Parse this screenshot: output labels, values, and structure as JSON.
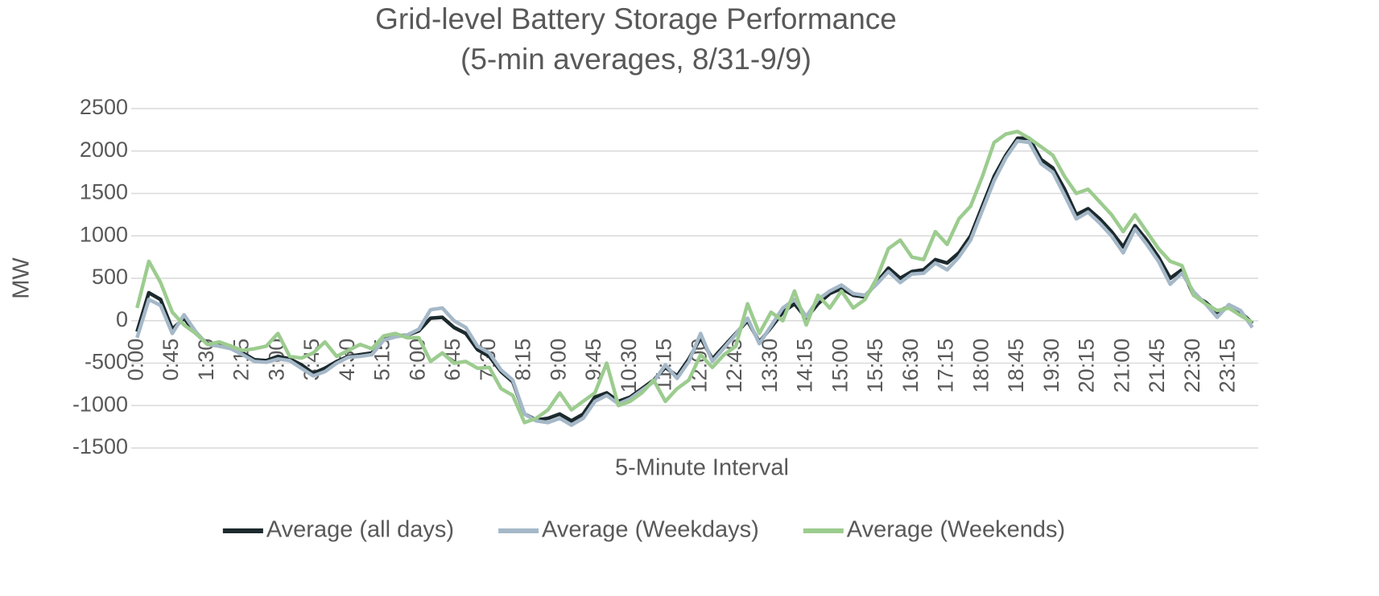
{
  "chart_data": {
    "type": "line",
    "title": "Grid-level Battery Storage Performance",
    "subtitle": "(5-min averages, 8/31-9/9)",
    "x_label": "5-Minute Interval",
    "y_label": "MW",
    "categories": [
      "0:00",
      null,
      null,
      "0:45",
      null,
      null,
      "1:30",
      null,
      null,
      "2:15",
      null,
      null,
      "3:00",
      null,
      null,
      "3:45",
      null,
      null,
      "4:30",
      null,
      null,
      "5:15",
      null,
      null,
      "6:00",
      null,
      null,
      "6:45",
      null,
      null,
      "7:30",
      null,
      null,
      "8:15",
      null,
      null,
      "9:00",
      null,
      null,
      "9:45",
      null,
      null,
      "10:30",
      null,
      null,
      "11:15",
      null,
      null,
      "12:00",
      null,
      null,
      "12:45",
      null,
      null,
      "13:30",
      null,
      null,
      "14:15",
      null,
      null,
      "15:00",
      null,
      null,
      "15:45",
      null,
      null,
      "16:30",
      null,
      null,
      "17:15",
      null,
      null,
      "18:00",
      null,
      null,
      "18:45",
      null,
      null,
      "19:30",
      null,
      null,
      "20:15",
      null,
      null,
      "21:00",
      null,
      null,
      "21:45",
      null,
      null,
      "22:30",
      null,
      null,
      "23:15",
      null,
      null
    ],
    "series": [
      {
        "name": "Average (all days)",
        "color": "#1c2a2e",
        "values": [
          -130,
          330,
          250,
          -100,
          30,
          -150,
          -270,
          -290,
          -300,
          -380,
          -460,
          -470,
          -420,
          -450,
          -520,
          -620,
          -560,
          -480,
          -420,
          -400,
          -380,
          -220,
          -180,
          -170,
          -120,
          30,
          40,
          -80,
          -150,
          -340,
          -420,
          -600,
          -720,
          -1100,
          -1170,
          -1150,
          -1100,
          -1180,
          -1100,
          -900,
          -850,
          -950,
          -900,
          -800,
          -700,
          -550,
          -650,
          -450,
          -200,
          -450,
          -300,
          -150,
          0,
          -250,
          -80,
          100,
          200,
          30,
          200,
          320,
          380,
          300,
          280,
          450,
          620,
          500,
          580,
          600,
          720,
          680,
          800,
          1000,
          1350,
          1700,
          1950,
          2150,
          2150,
          1900,
          1800,
          1550,
          1250,
          1320,
          1200,
          1050,
          870,
          1120,
          950,
          750,
          500,
          600,
          300,
          220,
          100,
          170,
          100,
          -30
        ]
      },
      {
        "name": "Average (Weekdays)",
        "color": "#a5b8c8",
        "values": [
          -200,
          250,
          180,
          -150,
          70,
          -130,
          -280,
          -300,
          -330,
          -400,
          -480,
          -490,
          -450,
          -470,
          -560,
          -650,
          -600,
          -500,
          -430,
          -420,
          -400,
          -230,
          -190,
          -170,
          -100,
          130,
          150,
          0,
          -80,
          -300,
          -380,
          -580,
          -700,
          -1100,
          -1180,
          -1200,
          -1150,
          -1230,
          -1150,
          -950,
          -880,
          -980,
          -920,
          -820,
          -720,
          -520,
          -680,
          -480,
          -150,
          -480,
          -320,
          -160,
          30,
          -270,
          -60,
          150,
          250,
          50,
          250,
          350,
          420,
          320,
          300,
          430,
          580,
          450,
          550,
          560,
          680,
          600,
          750,
          950,
          1300,
          1650,
          1920,
          2120,
          2100,
          1850,
          1750,
          1480,
          1200,
          1280,
          1150,
          1000,
          800,
          1080,
          900,
          700,
          430,
          560,
          340,
          200,
          40,
          190,
          120,
          -80
        ]
      },
      {
        "name": "Average (Weekends)",
        "color": "#9ccc8f",
        "values": [
          150,
          700,
          450,
          100,
          -50,
          -150,
          -280,
          -250,
          -300,
          -350,
          -330,
          -300,
          -150,
          -420,
          -440,
          -380,
          -250,
          -420,
          -350,
          -280,
          -330,
          -180,
          -150,
          -200,
          -200,
          -480,
          -380,
          -500,
          -480,
          -560,
          -550,
          -800,
          -880,
          -1200,
          -1150,
          -1050,
          -850,
          -1050,
          -950,
          -850,
          -500,
          -1000,
          -950,
          -850,
          -700,
          -950,
          -800,
          -700,
          -400,
          -550,
          -400,
          -300,
          200,
          -150,
          100,
          0,
          350,
          -50,
          300,
          150,
          350,
          150,
          250,
          500,
          850,
          950,
          750,
          720,
          1050,
          900,
          1200,
          1350,
          1700,
          2100,
          2200,
          2230,
          2150,
          2050,
          1950,
          1700,
          1500,
          1550,
          1400,
          1250,
          1050,
          1250,
          1050,
          850,
          700,
          650,
          300,
          200,
          120,
          150,
          60,
          -20
        ]
      }
    ],
    "ylim": [
      -1500,
      2500
    ],
    "yticks": [
      -1500,
      -1000,
      -500,
      0,
      500,
      1000,
      1500,
      2000,
      2500
    ],
    "grid": true,
    "legend": "bottom"
  }
}
